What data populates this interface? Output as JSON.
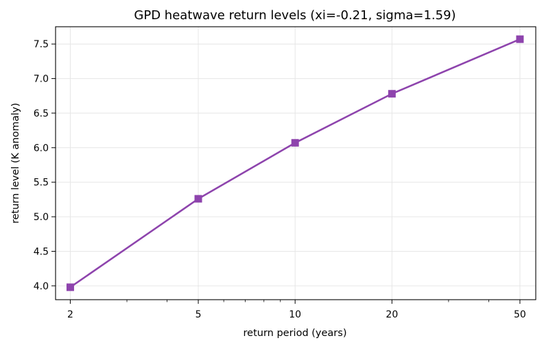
{
  "chart_data": {
    "type": "line",
    "title": "GPD heatwave return levels (xi=-0.21, sigma=1.59)",
    "xlabel": "return period (years)",
    "ylabel": "return level (K anomaly)",
    "x_scale": "log",
    "xlim": [
      1.8,
      56
    ],
    "ylim": [
      3.8,
      7.75
    ],
    "x_ticks": [
      2,
      5,
      10,
      20,
      50
    ],
    "x_tick_labels": [
      "2",
      "5",
      "10",
      "20",
      "50"
    ],
    "x_minor_ticks": [
      3,
      4,
      6,
      7,
      8,
      9,
      30,
      40
    ],
    "y_ticks": [
      4.0,
      4.5,
      5.0,
      5.5,
      6.0,
      6.5,
      7.0,
      7.5
    ],
    "y_tick_labels": [
      "4.0",
      "4.5",
      "5.0",
      "5.5",
      "6.0",
      "6.5",
      "7.0",
      "7.5"
    ],
    "grid": true,
    "legend": "none",
    "series": [
      {
        "x": [
          2,
          5,
          10,
          20,
          50
        ],
        "values": [
          3.98,
          5.26,
          6.07,
          6.78,
          7.57
        ],
        "color": "#8e44ad",
        "marker": "square"
      }
    ]
  }
}
